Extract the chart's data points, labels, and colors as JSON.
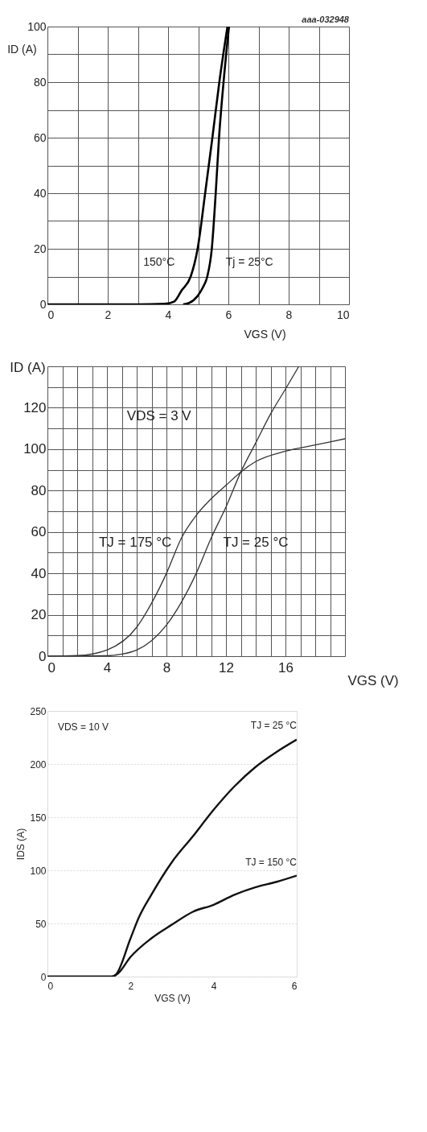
{
  "chart_data": [
    {
      "type": "line",
      "xlabel": "VGS (V)",
      "ylabel": "ID (A)",
      "xlim": [
        0,
        10
      ],
      "ylim": [
        0,
        100
      ],
      "xticks": [
        0,
        {
          "value": 1,
          "label": null
        },
        2,
        {
          "value": 3,
          "label": null
        },
        4,
        {
          "value": 5,
          "label": null
        },
        6,
        {
          "value": 7,
          "label": null
        },
        8,
        {
          "value": 9,
          "label": null
        },
        10
      ],
      "yticks": [
        0,
        {
          "value": 10,
          "label": null
        },
        20,
        {
          "value": 30,
          "label": null
        },
        40,
        {
          "value": 50,
          "label": null
        },
        60,
        {
          "value": 70,
          "label": null
        },
        80,
        {
          "value": 90,
          "label": null
        },
        100
      ],
      "grid": true,
      "annotations": [
        "aaa-032948"
      ],
      "series": [
        {
          "name": "150°C",
          "color": "#000000",
          "x": [
            0,
            3,
            3.9,
            4.2,
            4.45,
            4.75,
            4.98,
            5.23,
            5.47,
            5.7,
            5.97
          ],
          "values": [
            0,
            0,
            0.2,
            1,
            5,
            10,
            20,
            40,
            60,
            80,
            100
          ]
        },
        {
          "name": "Tj = 25°C",
          "color": "#000000",
          "x": [
            4.5,
            4.7,
            4.98,
            5.15,
            5.3,
            5.45,
            5.58,
            5.69,
            5.84,
            6.02
          ],
          "values": [
            0,
            0.5,
            3,
            6,
            10,
            20,
            40,
            60,
            80,
            100
          ]
        }
      ]
    },
    {
      "type": "line",
      "xlabel": "VGS (V)",
      "ylabel": "ID (A)",
      "xlim": [
        0,
        20
      ],
      "ylim": [
        0,
        140
      ],
      "xticks": [
        0,
        {
          "value": 1,
          "label": null
        },
        {
          "value": 2,
          "label": null
        },
        {
          "value": 3,
          "label": null
        },
        4,
        {
          "value": 5,
          "label": null
        },
        {
          "value": 6,
          "label": null
        },
        {
          "value": 7,
          "label": null
        },
        8,
        {
          "value": 9,
          "label": null
        },
        {
          "value": 10,
          "label": null
        },
        {
          "value": 11,
          "label": null
        },
        12,
        {
          "value": 13,
          "label": null
        },
        {
          "value": 14,
          "label": null
        },
        {
          "value": 15,
          "label": null
        },
        16,
        {
          "value": 17,
          "label": null
        },
        {
          "value": 18,
          "label": null
        },
        {
          "value": 19,
          "label": null
        },
        {
          "value": 20,
          "label": null
        }
      ],
      "yticks": [
        0,
        {
          "value": 10,
          "label": null
        },
        20,
        {
          "value": 30,
          "label": null
        },
        40,
        {
          "value": 50,
          "label": null
        },
        60,
        {
          "value": 70,
          "label": null
        },
        80,
        {
          "value": 90,
          "label": null
        },
        100,
        {
          "value": 110,
          "label": null
        },
        120,
        {
          "value": 130,
          "label": null
        },
        {
          "value": 140,
          "label": null
        }
      ],
      "grid": true,
      "annotations": [
        "VDS = 3 V"
      ],
      "series": [
        {
          "name": "TJ = 175 °C",
          "color": "#333333",
          "x": [
            0,
            2,
            4,
            6,
            7,
            8,
            9,
            10,
            11,
            12,
            13,
            14,
            16,
            18,
            20
          ],
          "values": [
            0,
            0.3,
            3,
            14,
            25.6,
            40,
            57,
            68,
            76,
            82.5,
            89,
            94,
            99,
            102,
            105
          ]
        },
        {
          "name": "TJ = 25 °C",
          "color": "#333333",
          "x": [
            0,
            4,
            5,
            6,
            7,
            8,
            9,
            10,
            11,
            12,
            13,
            14,
            15,
            16,
            16.9
          ],
          "values": [
            0,
            0.2,
            1,
            3,
            7.5,
            15,
            26,
            40,
            57,
            72,
            89,
            103,
            117,
            129,
            140
          ]
        }
      ]
    },
    {
      "type": "line",
      "xlabel": "VGS (V)",
      "ylabel": "IDS (A)",
      "xlim": [
        0,
        6
      ],
      "ylim": [
        0,
        250
      ],
      "xticks": [
        0,
        2,
        4,
        6
      ],
      "yticks": [
        0,
        50,
        100,
        150,
        200,
        250
      ],
      "grid": "y",
      "annotations": [
        "VDS = 10 V"
      ],
      "series": [
        {
          "name": "TJ = 25 °C",
          "color": "#111111",
          "x": [
            0,
            1.55,
            1.65,
            2,
            2.2,
            2.5,
            3,
            3.5,
            4,
            4.5,
            5,
            5.5,
            6
          ],
          "values": [
            0,
            0,
            2,
            36,
            55.6,
            77,
            108,
            132,
            157,
            179,
            197,
            211,
            223
          ]
        },
        {
          "name": "TJ = 150 °C",
          "color": "#111111",
          "x": [
            0,
            1.55,
            1.7,
            2,
            2.5,
            3,
            3.5,
            4,
            4.5,
            5,
            5.5,
            6
          ],
          "values": [
            0,
            0,
            3,
            18.5,
            36,
            49,
            61,
            67.6,
            77,
            84,
            89,
            95
          ]
        }
      ]
    }
  ]
}
